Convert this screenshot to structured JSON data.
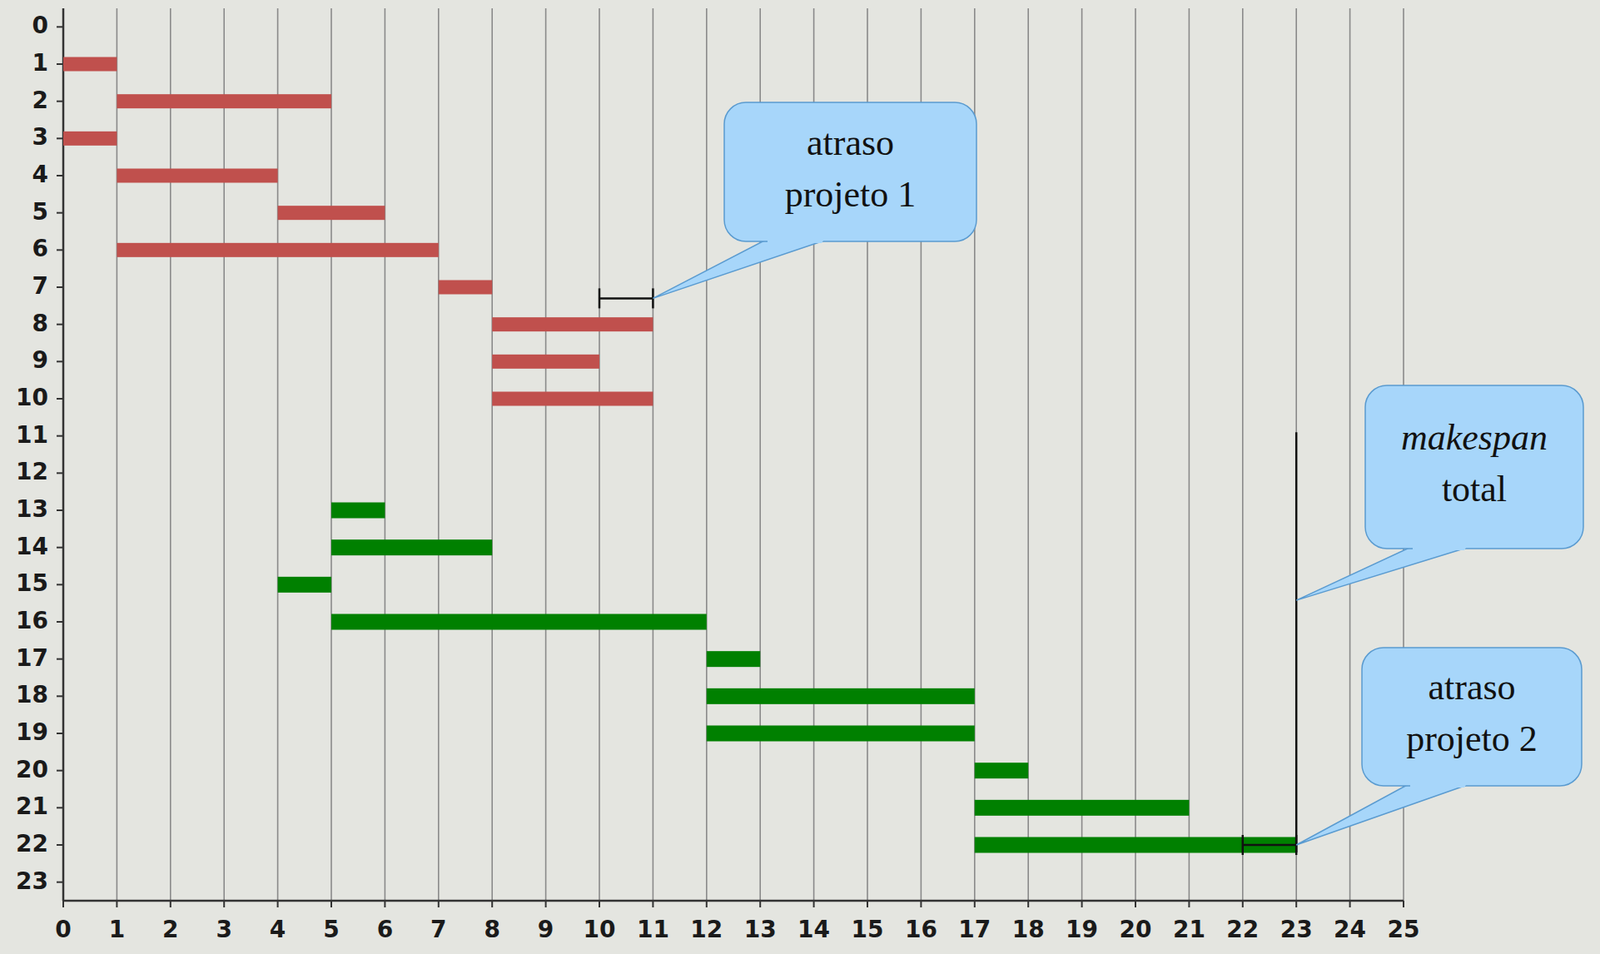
{
  "chart_data": {
    "type": "gantt",
    "xlim": [
      0,
      25
    ],
    "ylim": [
      -0.5,
      23.5
    ],
    "xticks": [
      0,
      1,
      2,
      3,
      4,
      5,
      6,
      7,
      8,
      9,
      10,
      11,
      12,
      13,
      14,
      15,
      16,
      17,
      18,
      19,
      20,
      21,
      22,
      23,
      24,
      25
    ],
    "yticks": [
      0,
      1,
      2,
      3,
      4,
      5,
      6,
      7,
      8,
      9,
      10,
      11,
      12,
      13,
      14,
      15,
      16,
      17,
      18,
      19,
      20,
      21,
      22,
      23
    ],
    "grid": true,
    "series": [
      {
        "color": "#c0504d",
        "tasks": [
          {
            "row": 1,
            "start": 0,
            "end": 1
          },
          {
            "row": 2,
            "start": 1,
            "end": 5
          },
          {
            "row": 3,
            "start": 0,
            "end": 1
          },
          {
            "row": 4,
            "start": 1,
            "end": 4
          },
          {
            "row": 5,
            "start": 4,
            "end": 6
          },
          {
            "row": 6,
            "start": 1,
            "end": 7
          },
          {
            "row": 7,
            "start": 7,
            "end": 8
          },
          {
            "row": 8,
            "start": 8,
            "end": 11
          },
          {
            "row": 9,
            "start": 8,
            "end": 10
          },
          {
            "row": 10,
            "start": 8,
            "end": 11
          }
        ]
      },
      {
        "color": "#008000",
        "tasks": [
          {
            "row": 13,
            "start": 5,
            "end": 6
          },
          {
            "row": 14,
            "start": 5,
            "end": 8
          },
          {
            "row": 15,
            "start": 4,
            "end": 5
          },
          {
            "row": 16,
            "start": 5,
            "end": 12
          },
          {
            "row": 17,
            "start": 12,
            "end": 13
          },
          {
            "row": 18,
            "start": 12,
            "end": 17
          },
          {
            "row": 19,
            "start": 12,
            "end": 17
          },
          {
            "row": 20,
            "start": 17,
            "end": 18
          },
          {
            "row": 21,
            "start": 17,
            "end": 21
          },
          {
            "row": 22,
            "start": 17,
            "end": 23
          }
        ]
      }
    ],
    "annotations": [
      {
        "text": [
          "atraso",
          "projeto 1"
        ],
        "kind": "bracket",
        "x": [
          10,
          11
        ],
        "y": 7.3
      },
      {
        "text": [
          "makespan",
          "total"
        ],
        "kind": "line",
        "x": 23,
        "y": [
          10.9,
          22.2
        ]
      },
      {
        "text": [
          "atraso",
          "projeto 2"
        ],
        "kind": "bracket",
        "x": [
          22,
          23
        ],
        "y": 22
      }
    ]
  }
}
